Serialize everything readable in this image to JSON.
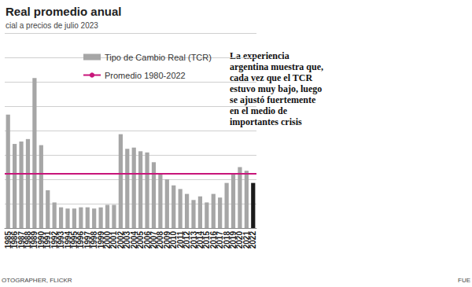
{
  "chart_data": {
    "type": "bar",
    "title": "Real promedio anual",
    "subtitle": "cial a precios de julio 2023",
    "annotation": "La experiencia\nargentina muestra que,\ncada vez que el TCR\nestuvo muy bajo, luego\nse ajustó fuertemente\nen el medio de\nimportantes crisis",
    "footer_left": "OTOGRAPHER, FLICKR",
    "footer_right": "FUE",
    "categories": [
      "1985",
      "1986",
      "1987",
      "1988",
      "1989",
      "1990",
      "1991",
      "1992",
      "1993",
      "1994",
      "1995",
      "1996",
      "1997",
      "1998",
      "1999",
      "2000",
      "2001",
      "2002",
      "2003",
      "2004",
      "2005",
      "2006",
      "2007",
      "2008",
      "2009",
      "2010",
      "2011",
      "2012",
      "2013",
      "2014",
      "2015",
      "2016",
      "2017",
      "2018",
      "2019",
      "2020",
      "2021",
      "2022"
    ],
    "series": [
      {
        "name": "Tipo de Cambio Real (TCR)",
        "type": "bar",
        "values": [
          93,
          69,
          71,
          73,
          123,
          68,
          31,
          21,
          17,
          16,
          16,
          17,
          17,
          16,
          17,
          19,
          19,
          77,
          65,
          66,
          63,
          62,
          54,
          45,
          40,
          35,
          32,
          28,
          23,
          26,
          21,
          28,
          25,
          37,
          45,
          50,
          47,
          37
        ],
        "colors": [
          "#a6a6a6",
          "#a6a6a6",
          "#a6a6a6",
          "#a6a6a6",
          "#a6a6a6",
          "#a6a6a6",
          "#a6a6a6",
          "#a6a6a6",
          "#a6a6a6",
          "#a6a6a6",
          "#a6a6a6",
          "#a6a6a6",
          "#a6a6a6",
          "#a6a6a6",
          "#a6a6a6",
          "#a6a6a6",
          "#a6a6a6",
          "#a6a6a6",
          "#a6a6a6",
          "#a6a6a6",
          "#a6a6a6",
          "#a6a6a6",
          "#a6a6a6",
          "#a6a6a6",
          "#a6a6a6",
          "#a6a6a6",
          "#a6a6a6",
          "#a6a6a6",
          "#a6a6a6",
          "#a6a6a6",
          "#a6a6a6",
          "#a6a6a6",
          "#a6a6a6",
          "#a6a6a6",
          "#a6a6a6",
          "#a6a6a6",
          "#a6a6a6",
          "#1a1a1a"
        ],
        "color": "#a6a6a6"
      },
      {
        "name": "Promedio 1980-2022",
        "type": "line",
        "value": 44.5,
        "color": "#c8157a"
      }
    ],
    "ylim": [
      0,
      160
    ],
    "yticks": [
      0,
      20,
      40,
      60,
      80,
      100,
      120,
      140,
      160
    ],
    "grid": true,
    "legend": "upper left",
    "tick_labels": "x"
  }
}
